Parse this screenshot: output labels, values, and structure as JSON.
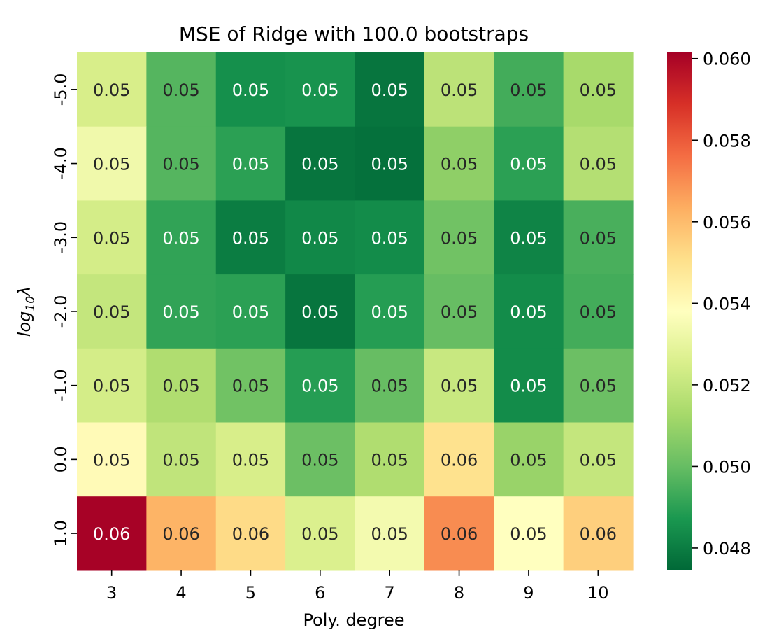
{
  "chart_data": {
    "type": "heatmap",
    "title": "MSE of Ridge with 100.0 bootstraps",
    "xlabel": "Poly. degree",
    "ylabel_base": "log",
    "ylabel_sub": "10",
    "ylabel_var": "λ",
    "x_categories": [
      "3",
      "4",
      "5",
      "6",
      "7",
      "8",
      "9",
      "10"
    ],
    "y_categories": [
      "-5.0",
      "-4.0",
      "-3.0",
      "-2.0",
      "-1.0",
      "0.0",
      "1.0"
    ],
    "values": [
      [
        0.0525,
        0.0497,
        0.0485,
        0.0486,
        0.0478,
        0.0518,
        0.0494,
        0.0513
      ],
      [
        0.0533,
        0.0497,
        0.049,
        0.0478,
        0.0477,
        0.0508,
        0.049,
        0.0516
      ],
      [
        0.0524,
        0.0491,
        0.048,
        0.0483,
        0.0484,
        0.0502,
        0.0482,
        0.0495
      ],
      [
        0.052,
        0.0491,
        0.049,
        0.0478,
        0.0489,
        0.05,
        0.0484,
        0.0494
      ],
      [
        0.0524,
        0.0515,
        0.0502,
        0.0489,
        0.05,
        0.0521,
        0.0484,
        0.0501
      ],
      [
        0.054,
        0.0519,
        0.0525,
        0.0501,
        0.0515,
        0.055,
        0.051,
        0.052
      ],
      [
        0.0601,
        0.0562,
        0.0552,
        0.0526,
        0.0534,
        0.057,
        0.0538,
        0.0555
      ]
    ],
    "annotations": [
      [
        "0.05",
        "0.05",
        "0.05",
        "0.05",
        "0.05",
        "0.05",
        "0.05",
        "0.05"
      ],
      [
        "0.05",
        "0.05",
        "0.05",
        "0.05",
        "0.05",
        "0.05",
        "0.05",
        "0.05"
      ],
      [
        "0.05",
        "0.05",
        "0.05",
        "0.05",
        "0.05",
        "0.05",
        "0.05",
        "0.05"
      ],
      [
        "0.05",
        "0.05",
        "0.05",
        "0.05",
        "0.05",
        "0.05",
        "0.05",
        "0.05"
      ],
      [
        "0.05",
        "0.05",
        "0.05",
        "0.05",
        "0.05",
        "0.05",
        "0.05",
        "0.05"
      ],
      [
        "0.05",
        "0.05",
        "0.05",
        "0.05",
        "0.05",
        "0.06",
        "0.05",
        "0.05"
      ],
      [
        "0.06",
        "0.06",
        "0.06",
        "0.05",
        "0.05",
        "0.06",
        "0.05",
        "0.06"
      ]
    ],
    "colormap": "RdYlGn_r",
    "vmin": 0.04745,
    "vmax": 0.06015,
    "colorbar_ticks": [
      0.048,
      0.05,
      0.052,
      0.054,
      0.056,
      0.058,
      0.06
    ],
    "colorbar_tick_labels": [
      "0.048",
      "0.050",
      "0.052",
      "0.054",
      "0.056",
      "0.058",
      "0.060"
    ]
  },
  "colors": {
    "colormap_stops": [
      "#006837",
      "#1a9850",
      "#66bd63",
      "#a6d96a",
      "#d9ef8b",
      "#ffffbf",
      "#fee08b",
      "#fdae61",
      "#f46d43",
      "#d73027",
      "#a50026"
    ],
    "text_dark": "#262626",
    "text_light": "#ffffff",
    "axis_text": "#000000"
  }
}
